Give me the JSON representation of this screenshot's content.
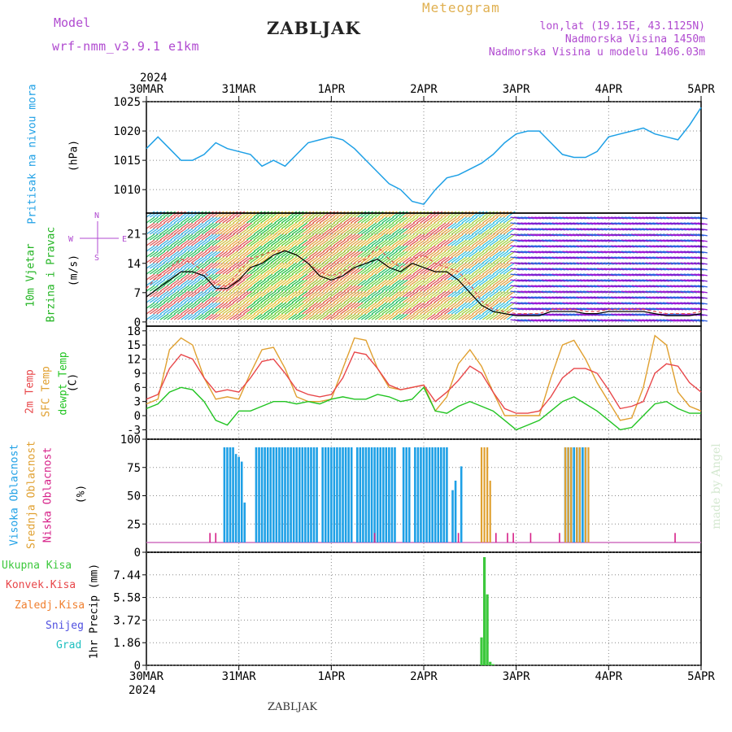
{
  "header": {
    "model_label": "Model",
    "model_value": "wrf-nmm_v3.9.1  e1km",
    "station": "ZABLJAK",
    "product": "Meteogram",
    "coords": "lon,lat (19.15E, 43.1125N)",
    "altitude": "Nadmorska Visina 1450m",
    "model_altitude": "Nadmorska Visina u modelu 1406.03m",
    "footer_station": "ZABLJAK",
    "watermark": "made by Angel"
  },
  "colors": {
    "pressure": "#1ea0e6",
    "wind_fast": "#9b1bd6",
    "temp2m": "#e8474a",
    "sfc_temp": "#e0a030",
    "dewpt": "#22c422",
    "cloud_high": "#1ea0e6",
    "cloud_mid": "#e0a030",
    "cloud_low": "#d62088",
    "precip_total": "#3cc83c",
    "grid": "#888888"
  },
  "chart_data": [
    {
      "type": "line",
      "panel": "pressure",
      "ylabel_left": "Pritisak na nivou mora",
      "unit": "(hPa)",
      "x_ticks_top_year": "2024",
      "x_ticks": [
        "30MAR",
        "31MAR",
        "1APR",
        "2APR",
        "3APR",
        "4APR",
        "5APR"
      ],
      "ylim": [
        1006,
        1025
      ],
      "y_ticks": [
        "1010",
        "1015",
        "1020",
        "1025"
      ],
      "x_hours": [
        0,
        3,
        6,
        9,
        12,
        15,
        18,
        21,
        24,
        27,
        30,
        33,
        36,
        39,
        42,
        45,
        48,
        51,
        54,
        57,
        60,
        63,
        66,
        69,
        72,
        75,
        78,
        81,
        84,
        87,
        90,
        93,
        96,
        99,
        102,
        105,
        108,
        111,
        114,
        117,
        120,
        123,
        126,
        129,
        132,
        135,
        138,
        141,
        144
      ],
      "series": [
        {
          "values": [
            1017,
            1019,
            1017,
            1015,
            1015,
            1016,
            1018,
            1017,
            1016.5,
            1016,
            1014,
            1015,
            1014,
            1016,
            1018,
            1018.5,
            1019,
            1018.5,
            1017,
            1015,
            1013,
            1011,
            1010,
            1008,
            1007.5,
            1010,
            1012,
            1012.5,
            1013.5,
            1014.5,
            1016,
            1018,
            1019.5,
            1020,
            1020,
            1018,
            1016,
            1015.5,
            1015.5,
            1016.5,
            1019,
            1019.5,
            1020,
            1020.5,
            1019.5,
            1019,
            1018.5,
            1021,
            1024
          ]
        }
      ]
    },
    {
      "type": "line",
      "panel": "wind",
      "ylabel_left": "10m Vjetar",
      "ylabel_left2": "Brzina i Pravac",
      "unit": "(m/s)",
      "ylim": [
        -1,
        26
      ],
      "y_ticks": [
        "0",
        "7",
        "14",
        "21"
      ],
      "compass": {
        "n": "N",
        "w": "W",
        "e": "E",
        "s": "S"
      },
      "x_hours": [
        0,
        3,
        6,
        9,
        12,
        15,
        18,
        21,
        24,
        27,
        30,
        33,
        36,
        39,
        42,
        45,
        48,
        51,
        54,
        57,
        60,
        63,
        66,
        69,
        72,
        75,
        78,
        81,
        84,
        87,
        90,
        93,
        96,
        99,
        102,
        105,
        108,
        111,
        114,
        117,
        120,
        123,
        126,
        129,
        132,
        135,
        138,
        141,
        144
      ],
      "series": [
        {
          "values": [
            8,
            11,
            13,
            15,
            14,
            12,
            9,
            8.5,
            12,
            15,
            16,
            17,
            17,
            16,
            14,
            12,
            11,
            12,
            14,
            15,
            18,
            15,
            13,
            15,
            16,
            14,
            13,
            12,
            9,
            5,
            3,
            2.5,
            2,
            2,
            2,
            3,
            3,
            3,
            2.5,
            2.5,
            3,
            3,
            3,
            3,
            2.5,
            2,
            2,
            2,
            2.5
          ]
        },
        {
          "values": [
            6,
            8,
            10,
            12,
            12,
            11,
            8,
            8,
            10,
            13,
            14,
            16,
            17,
            16,
            14,
            11,
            10,
            11,
            13,
            14,
            15,
            13,
            12,
            14,
            13,
            12,
            12,
            10,
            7,
            4,
            2.5,
            2,
            1.5,
            1.5,
            1.5,
            2.5,
            2.5,
            2.5,
            2,
            2,
            2.5,
            2.5,
            2.5,
            2.5,
            2,
            1.5,
            1.5,
            1.5,
            2
          ]
        }
      ]
    },
    {
      "type": "line",
      "panel": "temperature",
      "ylabel_left": "2m Temp",
      "ylabel_left2": "SFC Temp",
      "ylabel_left3": "dewpt Temp",
      "unit": "(C)",
      "ylim": [
        -5,
        19
      ],
      "y_ticks": [
        "-3",
        "0",
        "3",
        "6",
        "9",
        "12",
        "15",
        "18"
      ],
      "x_hours": [
        0,
        3,
        6,
        9,
        12,
        15,
        18,
        21,
        24,
        27,
        30,
        33,
        36,
        39,
        42,
        45,
        48,
        51,
        54,
        57,
        60,
        63,
        66,
        69,
        72,
        75,
        78,
        81,
        84,
        87,
        90,
        93,
        96,
        99,
        102,
        105,
        108,
        111,
        114,
        117,
        120,
        123,
        126,
        129,
        132,
        135,
        138,
        141,
        144
      ],
      "series": [
        {
          "values": [
            3.5,
            4.5,
            10,
            13,
            12,
            8,
            5,
            5.5,
            5,
            8,
            11.5,
            12,
            9,
            5.5,
            4.5,
            4,
            4.5,
            8,
            13.5,
            13,
            10,
            6.5,
            5.5,
            6,
            6.5,
            3,
            5,
            7.5,
            10.5,
            9,
            5,
            1.5,
            0.5,
            0.5,
            1,
            4,
            8,
            10,
            10,
            9,
            5.5,
            1.5,
            2,
            3,
            9,
            11,
            10.5,
            7,
            5
          ]
        },
        {
          "values": [
            2.5,
            3.5,
            14,
            16.5,
            15,
            8,
            3.5,
            4,
            3.5,
            9,
            14,
            14.5,
            10,
            4,
            3,
            3,
            3.5,
            10,
            16.5,
            16,
            10,
            6,
            5.5,
            6,
            6.5,
            1,
            4,
            11,
            14,
            10.5,
            5,
            0,
            0,
            0,
            0,
            8,
            15,
            16,
            12,
            7,
            3,
            -1,
            -0.5,
            6,
            17,
            15,
            5,
            2,
            1
          ]
        },
        {
          "values": [
            1.5,
            2.5,
            5,
            6,
            5.5,
            3,
            -1,
            -2,
            1,
            1,
            2,
            3,
            3,
            2.5,
            3,
            2.5,
            3.5,
            4,
            3.5,
            3.5,
            4.5,
            4,
            3,
            3.5,
            6,
            1,
            0.5,
            2,
            3,
            2,
            1,
            -1,
            -3,
            -2,
            -1,
            1,
            3,
            4,
            2.5,
            1,
            -1,
            -3,
            -2.5,
            0,
            2.5,
            3,
            1.5,
            0.5,
            0.5
          ]
        }
      ]
    },
    {
      "type": "bar",
      "panel": "clouds",
      "ylabel_left": "Visoka Oblacnost",
      "ylabel_left2": "Srednja Oblacnost",
      "ylabel_left3": "Niska Oblacnost",
      "unit": "(%)",
      "ylim": [
        0,
        100
      ],
      "y_ticks": [
        "0",
        "25",
        "50",
        "75",
        "100"
      ],
      "series": [
        {
          "name": "high",
          "bars": [
            [
              27,
              100
            ],
            [
              28,
              100
            ],
            [
              29,
              100
            ],
            [
              30,
              100
            ],
            [
              31,
              93
            ],
            [
              32,
              90
            ],
            [
              33,
              85
            ],
            [
              34,
              42
            ],
            [
              38,
              100
            ],
            [
              39,
              100
            ],
            [
              40,
              100
            ],
            [
              41,
              100
            ],
            [
              42,
              100
            ],
            [
              43,
              100
            ],
            [
              44,
              100
            ],
            [
              45,
              100
            ],
            [
              46,
              100
            ],
            [
              47,
              100
            ],
            [
              48,
              100
            ],
            [
              49,
              100
            ],
            [
              50,
              100
            ],
            [
              51,
              100
            ],
            [
              52,
              100
            ],
            [
              53,
              100
            ],
            [
              54,
              100
            ],
            [
              55,
              100
            ],
            [
              56,
              100
            ],
            [
              57,
              100
            ],
            [
              58,
              100
            ],
            [
              59,
              100
            ],
            [
              61,
              100
            ],
            [
              62,
              100
            ],
            [
              63,
              100
            ],
            [
              64,
              100
            ],
            [
              65,
              100
            ],
            [
              66,
              100
            ],
            [
              67,
              100
            ],
            [
              68,
              100
            ],
            [
              69,
              100
            ],
            [
              70,
              100
            ],
            [
              71,
              100
            ],
            [
              73,
              100
            ],
            [
              74,
              100
            ],
            [
              75,
              100
            ],
            [
              76,
              100
            ],
            [
              77,
              100
            ],
            [
              78,
              100
            ],
            [
              79,
              100
            ],
            [
              80,
              100
            ],
            [
              81,
              100
            ],
            [
              82,
              100
            ],
            [
              83,
              100
            ],
            [
              84,
              100
            ],
            [
              85,
              100
            ],
            [
              86,
              100
            ],
            [
              89,
              100
            ],
            [
              90,
              100
            ],
            [
              91,
              100
            ],
            [
              93,
              100
            ],
            [
              94,
              100
            ],
            [
              95,
              100
            ],
            [
              96,
              100
            ],
            [
              97,
              100
            ],
            [
              98,
              100
            ],
            [
              99,
              100
            ],
            [
              100,
              100
            ],
            [
              101,
              100
            ],
            [
              102,
              100
            ],
            [
              103,
              100
            ],
            [
              104,
              100
            ],
            [
              106,
              55
            ],
            [
              107,
              65
            ],
            [
              109,
              80
            ],
            [
              145,
              100
            ],
            [
              146,
              100
            ],
            [
              147,
              100
            ],
            [
              148,
              100
            ],
            [
              149,
              100
            ],
            [
              150,
              100
            ],
            [
              151,
              100
            ],
            [
              152,
              100
            ]
          ]
        },
        {
          "name": "mid",
          "bars": [
            [
              116,
              100
            ],
            [
              117,
              100
            ],
            [
              118,
              100
            ],
            [
              119,
              65
            ],
            [
              145,
              100
            ],
            [
              146,
              100
            ],
            [
              147,
              100
            ],
            [
              149,
              100
            ],
            [
              150,
              100
            ],
            [
              152,
              100
            ],
            [
              153,
              100
            ]
          ]
        },
        {
          "name": "low",
          "bars": [
            [
              22,
              10
            ],
            [
              24,
              10
            ],
            [
              79,
              10
            ],
            [
              108,
              10
            ],
            [
              121,
              10
            ],
            [
              125,
              10
            ],
            [
              127,
              10
            ],
            [
              133,
              10
            ],
            [
              143,
              10
            ],
            [
              183,
              10
            ]
          ]
        }
      ]
    },
    {
      "type": "bar",
      "panel": "precip",
      "ylabel_left": "Ukupna Kisa",
      "ylabel_left2": "Konvek.Kisa",
      "ylabel_left3": "Zaledj.Kisa",
      "ylabel_left4": "Snijeg",
      "ylabel_left5": "Grad",
      "unit": "1hr Precip (mm)",
      "ylim": [
        0,
        9.3
      ],
      "y_ticks": [
        "0",
        "1.86",
        "3.72",
        "5.58",
        "7.44"
      ],
      "series": [
        {
          "name": "total",
          "bars": [
            [
              116,
              2.4
            ],
            [
              117,
              9.3
            ],
            [
              118,
              6.1
            ],
            [
              119,
              0.3
            ],
            [
              120,
              0.1
            ]
          ]
        }
      ]
    }
  ]
}
